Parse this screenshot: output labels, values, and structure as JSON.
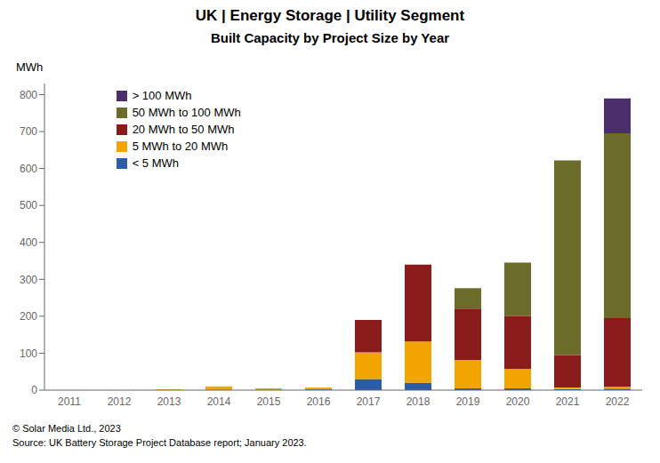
{
  "chart_data": {
    "type": "bar",
    "stacked": true,
    "title": "UK | Energy Storage | Utility Segment",
    "subtitle": "Built Capacity by Project Size by Year",
    "y_label": "MWh",
    "categories": [
      "2011",
      "2012",
      "2013",
      "2014",
      "2015",
      "2016",
      "2017",
      "2018",
      "2019",
      "2020",
      "2021",
      "2022"
    ],
    "series": [
      {
        "name": "< 5 MWh",
        "color": "#2B5CA8",
        "values": [
          0,
          0,
          0,
          0,
          0,
          2,
          30,
          20,
          5,
          5,
          3,
          4
        ]
      },
      {
        "name": "5 MWh to 20 MWh",
        "color": "#F2A500",
        "values": [
          0,
          0,
          2,
          10,
          5,
          5,
          72,
          112,
          76,
          52,
          4,
          5
        ]
      },
      {
        "name": "20 MWh to 50 MWh",
        "color": "#8B1A1A",
        "values": [
          0,
          0,
          0,
          0,
          0,
          0,
          88,
          208,
          140,
          143,
          88,
          186
        ]
      },
      {
        "name": "50 MWh to 100 MWh",
        "color": "#6B6B2A",
        "values": [
          0,
          0,
          0,
          0,
          0,
          0,
          0,
          0,
          55,
          145,
          527,
          500
        ]
      },
      {
        "name": "> 100 MWh",
        "color": "#4B2E6B",
        "values": [
          0,
          0,
          0,
          0,
          0,
          0,
          0,
          0,
          0,
          0,
          0,
          95
        ]
      }
    ],
    "ylim": [
      0,
      830
    ],
    "yticks": [
      0,
      100,
      200,
      300,
      400,
      500,
      600,
      700,
      800
    ],
    "grid": false,
    "legend": "upper left",
    "annotations": [
      "© Solar Media Ltd., 2023",
      "Source: UK Battery Storage Project Database report; January 2023."
    ]
  }
}
